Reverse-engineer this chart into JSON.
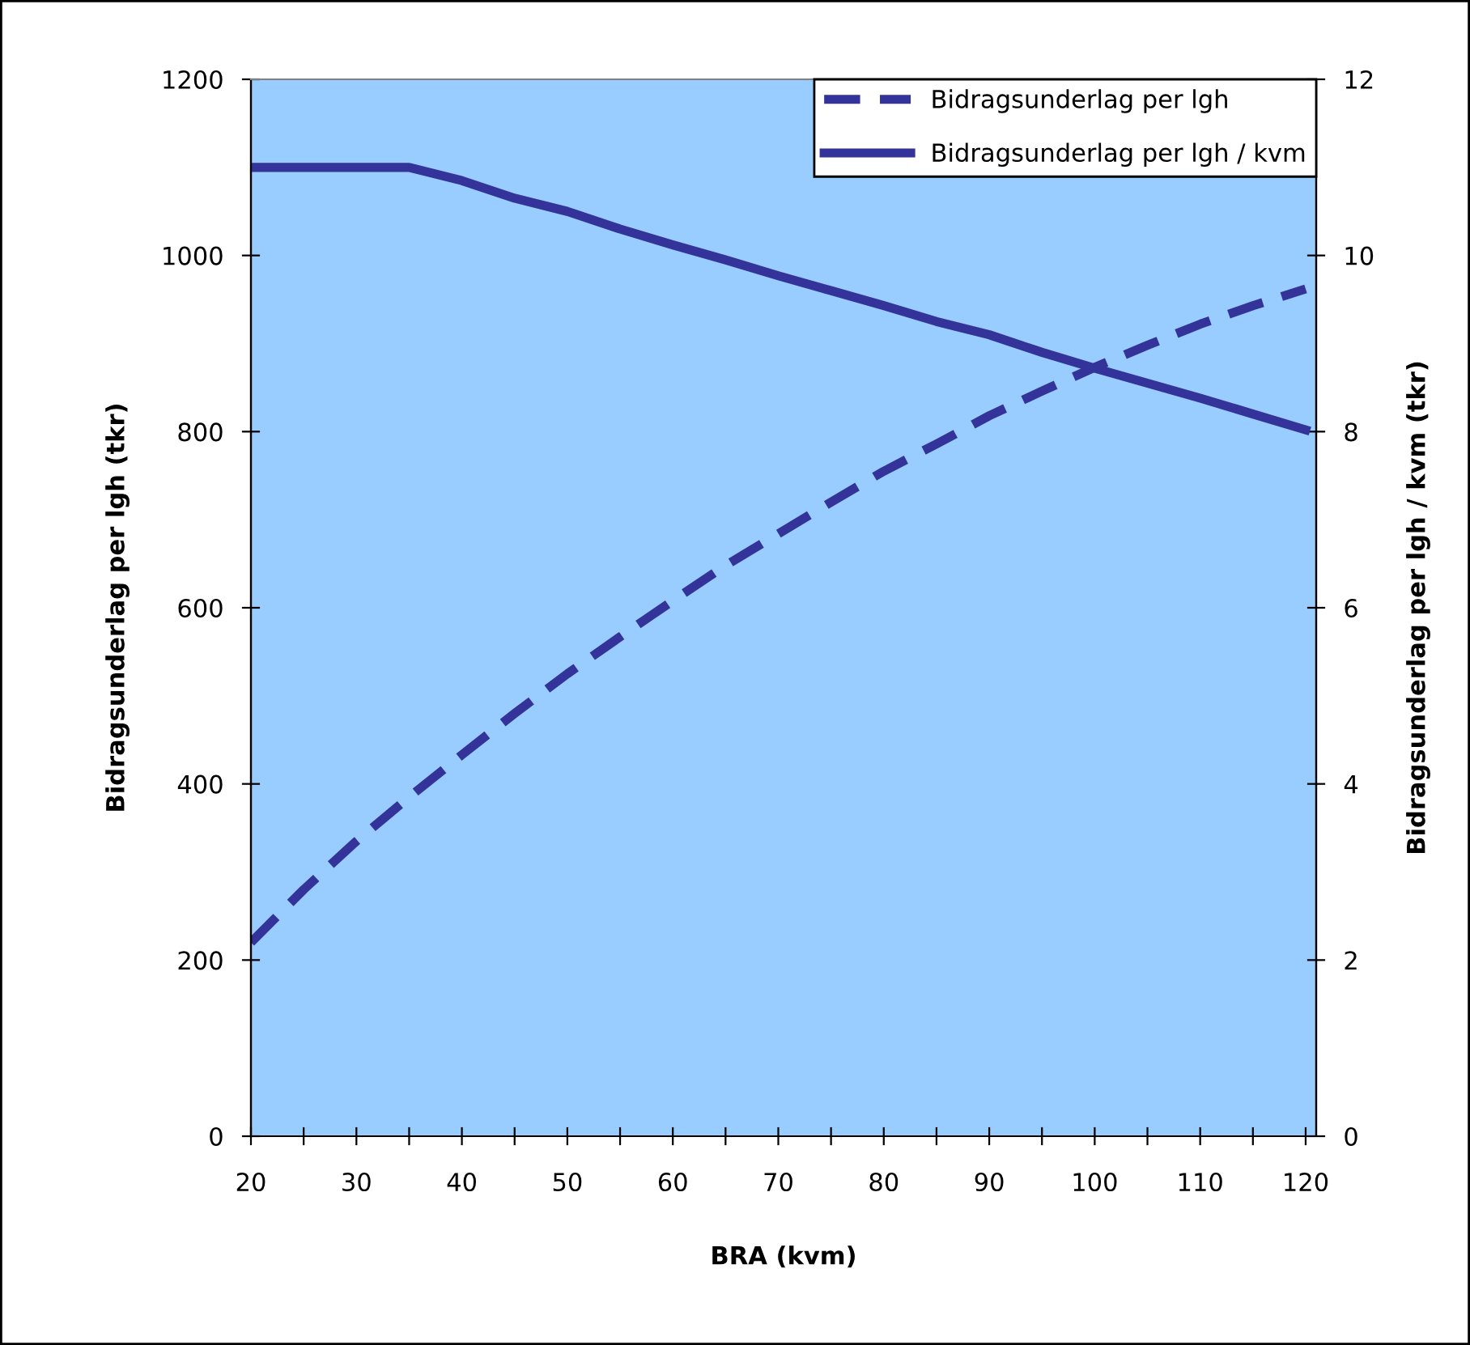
{
  "chart_data": {
    "type": "line",
    "xlabel": "BRA (kvm)",
    "ylabel": "Bidragsunderlag per lgh (tkr)",
    "y2label": "Bidragsunderlag per lgh / kvm (tkr)",
    "x": [
      20,
      25,
      30,
      35,
      40,
      45,
      50,
      55,
      60,
      65,
      70,
      75,
      80,
      85,
      90,
      95,
      100,
      105,
      110,
      115,
      120
    ],
    "series": [
      {
        "name": "Bidragsunderlag per lgh",
        "color": "#333399",
        "line_style": "dashed",
        "axis": "y",
        "values": [
          220,
          280,
          335,
          385,
          433,
          480,
          525,
          567,
          608,
          648,
          684,
          720,
          755,
          786,
          818,
          846,
          873,
          898,
          922,
          943,
          962
        ]
      },
      {
        "name": "Bidragsunderlag per lgh / kvm",
        "color": "#333399",
        "line_style": "solid",
        "axis": "y2",
        "values": [
          11,
          11,
          11,
          11,
          10.85,
          10.65,
          10.5,
          10.3,
          10.12,
          9.95,
          9.77,
          9.6,
          9.43,
          9.25,
          9.1,
          8.9,
          8.72,
          8.55,
          8.38,
          8.2,
          8.02
        ]
      }
    ],
    "xlim": [
      20,
      121
    ],
    "xticks": [
      20,
      {
        "value": 25,
        "label": null
      },
      30,
      {
        "value": 35,
        "label": null
      },
      40,
      {
        "value": 45,
        "label": null
      },
      50,
      {
        "value": 55,
        "label": null
      },
      60,
      {
        "value": 65,
        "label": null
      },
      70,
      {
        "value": 75,
        "label": null
      },
      80,
      {
        "value": 85,
        "label": null
      },
      90,
      {
        "value": 95,
        "label": null
      },
      100,
      {
        "value": 105,
        "label": null
      },
      110,
      {
        "value": 115,
        "label": null
      },
      120
    ],
    "ylim": [
      0,
      1200
    ],
    "yticks": [
      0,
      200,
      400,
      600,
      800,
      1000,
      1200
    ],
    "y2lim": [
      0,
      12
    ],
    "y2ticks": [
      0,
      2,
      4,
      6,
      8,
      10,
      12
    ],
    "grid": false,
    "legend": "top right",
    "marker": "none"
  }
}
